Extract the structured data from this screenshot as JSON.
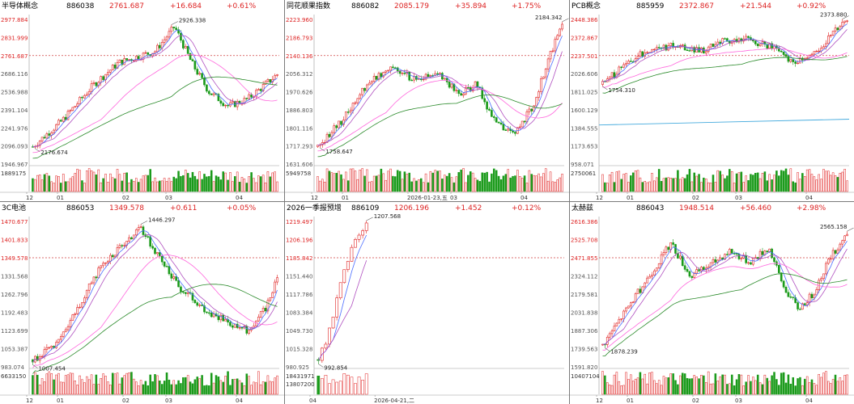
{
  "panels": [
    {
      "name": "半导体概念",
      "code": "886038",
      "price": "2761.687",
      "change": "+16.684",
      "pct": "+0.61%",
      "y_labels": [
        "2977.884",
        "2831.999",
        "2761.687",
        "2686.116",
        "2536.988",
        "2391.104",
        "2241.976",
        "2096.093",
        "1946.967"
      ],
      "vol_label": "1889175",
      "x_labels": [
        "12",
        "01",
        "02",
        "03",
        "04"
      ],
      "high_mark": "2926.338",
      "low_mark": "2176.674"
    },
    {
      "name": "同花顺果指数",
      "code": "886082",
      "price": "2085.179",
      "change": "+35.894",
      "pct": "+1.75%",
      "y_labels": [
        "2223.960",
        "2186.793",
        "2140.136",
        "2056.312",
        "1970.626",
        "1886.803",
        "1801.116",
        "1717.293",
        "1631.606"
      ],
      "vol_label": "5949758",
      "x_labels": [
        "12",
        "01",
        "2026-01-23,五",
        "03",
        "04"
      ],
      "high_mark": "2184.342",
      "low_mark": "1758.647"
    },
    {
      "name": "PCB概念",
      "code": "885959",
      "price": "2372.867",
      "change": "+21.544",
      "pct": "+0.92%",
      "y_labels": [
        "2448.386",
        "2372.867",
        "2237.501",
        "2026.606",
        "1811.025",
        "1600.129",
        "1384.555",
        "1173.653",
        "958.071"
      ],
      "vol_label": "2750061",
      "x_labels": [
        "12",
        "01",
        "02",
        "03",
        "04"
      ],
      "high_mark": "2373.880",
      "low_mark": "1754.310"
    },
    {
      "name": "3C电池",
      "code": "886053",
      "price": "1349.578",
      "change": "+0.611",
      "pct": "+0.05%",
      "y_labels": [
        "1470.677",
        "1401.833",
        "1349.578",
        "1331.568",
        "1262.796",
        "1192.483",
        "1123.699",
        "1053.387",
        "983.074"
      ],
      "vol_label": "6633150",
      "x_labels": [
        "12",
        "01",
        "02",
        "03",
        "04"
      ],
      "high_mark": "1446.297",
      "low_mark": "1007.454"
    },
    {
      "name": "2026一季报预增",
      "code": "886109",
      "price": "1206.196",
      "change": "+1.452",
      "pct": "+0.12%",
      "y_labels": [
        "1219.497",
        "1206.196",
        "1185.842",
        "1151.440",
        "1117.786",
        "1083.384",
        "1049.730",
        "1015.328",
        "980.925"
      ],
      "vol_label": "18431971",
      "vol_label2": "13807200",
      "x_labels": [
        "04",
        "2026-04-21,二"
      ],
      "high_mark": "1207.568",
      "low_mark": "992.854"
    },
    {
      "name": "太赫兹",
      "code": "886043",
      "price": "1948.514",
      "change": "+56.460",
      "pct": "+2.98%",
      "y_labels": [
        "2616.386",
        "2525.708",
        "2471.855",
        "2324.112",
        "2179.581",
        "2031.838",
        "1887.306",
        "1739.563",
        "1591.820"
      ],
      "vol_label": "10407104",
      "x_labels": [
        "12",
        "01",
        "02",
        "03",
        "04"
      ],
      "high_mark": "2565.158",
      "low_mark": "1878.239"
    }
  ],
  "colors": {
    "up": "#e02020",
    "down": "#1a9a1a",
    "ma5": "#4a6cff",
    "ma10": "#b050c0",
    "ma30": "#ff66dd",
    "ma60": "#2a8a2a",
    "ma_alt": "#44aadd",
    "dash": "#d04040"
  }
}
